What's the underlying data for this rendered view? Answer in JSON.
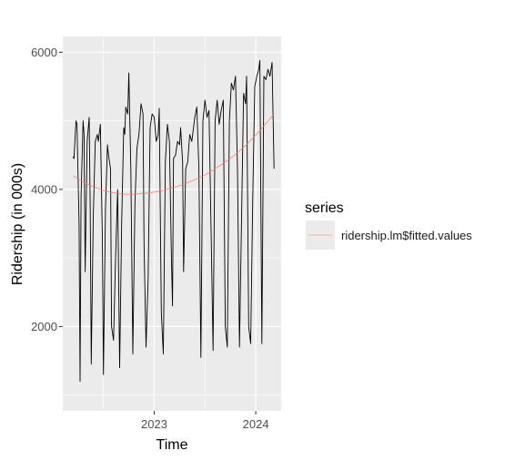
{
  "chart_data": {
    "type": "line",
    "xlabel": "Time",
    "ylabel": "Ridership (in 000s)",
    "xlim": [
      2022.1,
      2024.25
    ],
    "ylim": [
      770,
      6230
    ],
    "x_ticks": [
      {
        "value": 2023,
        "label": "2023"
      },
      {
        "value": 2024,
        "label": "2024"
      }
    ],
    "y_ticks": [
      {
        "value": 2000,
        "label": "2000"
      },
      {
        "value": 4000,
        "label": "4000"
      },
      {
        "value": 6000,
        "label": "6000"
      }
    ],
    "grid": true,
    "legend": {
      "title": "series",
      "position": "right"
    },
    "series": [
      {
        "color": "#000000",
        "points": [
          [
            2022.2,
            4480
          ],
          [
            2022.21,
            4450
          ],
          [
            2022.23,
            5000
          ],
          [
            2022.24,
            4950
          ],
          [
            2022.26,
            3500
          ],
          [
            2022.27,
            1200
          ],
          [
            2022.28,
            3900
          ],
          [
            2022.3,
            5000
          ],
          [
            2022.31,
            4800
          ],
          [
            2022.32,
            2800
          ],
          [
            2022.34,
            4700
          ],
          [
            2022.36,
            5050
          ],
          [
            2022.37,
            3800
          ],
          [
            2022.38,
            1450
          ],
          [
            2022.4,
            3600
          ],
          [
            2022.42,
            4700
          ],
          [
            2022.44,
            4800
          ],
          [
            2022.45,
            4700
          ],
          [
            2022.47,
            4950
          ],
          [
            2022.49,
            3300
          ],
          [
            2022.5,
            1300
          ],
          [
            2022.52,
            3700
          ],
          [
            2022.54,
            4650
          ],
          [
            2022.55,
            4500
          ],
          [
            2022.57,
            4300
          ],
          [
            2022.58,
            2000
          ],
          [
            2022.6,
            1800
          ],
          [
            2022.62,
            3000
          ],
          [
            2022.64,
            4000
          ],
          [
            2022.66,
            1400
          ],
          [
            2022.68,
            3500
          ],
          [
            2022.7,
            4900
          ],
          [
            2022.71,
            4800
          ],
          [
            2022.72,
            5200
          ],
          [
            2022.74,
            5100
          ],
          [
            2022.75,
            5700
          ],
          [
            2022.77,
            4300
          ],
          [
            2022.79,
            1600
          ],
          [
            2022.81,
            3800
          ],
          [
            2022.83,
            4600
          ],
          [
            2022.85,
            4800
          ],
          [
            2022.87,
            5250
          ],
          [
            2022.89,
            5100
          ],
          [
            2022.9,
            3200
          ],
          [
            2022.92,
            1700
          ],
          [
            2022.94,
            2700
          ],
          [
            2022.96,
            4900
          ],
          [
            2022.98,
            5100
          ],
          [
            2023.0,
            5050
          ],
          [
            2023.02,
            4700
          ],
          [
            2023.04,
            4800
          ],
          [
            2023.05,
            5180
          ],
          [
            2023.07,
            2200
          ],
          [
            2023.09,
            1600
          ],
          [
            2023.11,
            4400
          ],
          [
            2023.13,
            4950
          ],
          [
            2023.15,
            4700
          ],
          [
            2023.17,
            3000
          ],
          [
            2023.18,
            2300
          ],
          [
            2023.19,
            4450
          ],
          [
            2023.21,
            4500
          ],
          [
            2023.23,
            4700
          ],
          [
            2023.25,
            4650
          ],
          [
            2023.26,
            4900
          ],
          [
            2023.28,
            4400
          ],
          [
            2023.29,
            2800
          ],
          [
            2023.31,
            4300
          ],
          [
            2023.33,
            4400
          ],
          [
            2023.35,
            4800
          ],
          [
            2023.37,
            4700
          ],
          [
            2023.4,
            5050
          ],
          [
            2023.42,
            5200
          ],
          [
            2023.44,
            4300
          ],
          [
            2023.46,
            1550
          ],
          [
            2023.48,
            5000
          ],
          [
            2023.5,
            5300
          ],
          [
            2023.52,
            5050
          ],
          [
            2023.54,
            5150
          ],
          [
            2023.56,
            3400
          ],
          [
            2023.58,
            1650
          ],
          [
            2023.6,
            5000
          ],
          [
            2023.62,
            5300
          ],
          [
            2023.64,
            4950
          ],
          [
            2023.66,
            5150
          ],
          [
            2023.68,
            5300
          ],
          [
            2023.7,
            2000
          ],
          [
            2023.72,
            1700
          ],
          [
            2023.74,
            5000
          ],
          [
            2023.76,
            5550
          ],
          [
            2023.78,
            5450
          ],
          [
            2023.8,
            5650
          ],
          [
            2023.82,
            4300
          ],
          [
            2023.84,
            1700
          ],
          [
            2023.86,
            3600
          ],
          [
            2023.88,
            5400
          ],
          [
            2023.9,
            5250
          ],
          [
            2023.91,
            5650
          ],
          [
            2023.93,
            2000
          ],
          [
            2023.95,
            1750
          ],
          [
            2023.97,
            3800
          ],
          [
            2023.99,
            5500
          ],
          [
            2024.01,
            5650
          ],
          [
            2024.03,
            5750
          ],
          [
            2024.04,
            5880
          ],
          [
            2024.06,
            1750
          ],
          [
            2024.08,
            5650
          ],
          [
            2024.1,
            5600
          ],
          [
            2024.12,
            5750
          ],
          [
            2024.14,
            5650
          ],
          [
            2024.16,
            5850
          ],
          [
            2024.18,
            4300
          ]
        ]
      },
      {
        "name": "ridership.lm$fitted.values",
        "color": "#f8766d",
        "points": [
          [
            2022.2,
            4200
          ],
          [
            2022.3,
            4110
          ],
          [
            2022.4,
            4040
          ],
          [
            2022.5,
            3985
          ],
          [
            2022.6,
            3950
          ],
          [
            2022.7,
            3930
          ],
          [
            2022.8,
            3930
          ],
          [
            2022.9,
            3940
          ],
          [
            2023.0,
            3960
          ],
          [
            2023.1,
            3990
          ],
          [
            2023.2,
            4030
          ],
          [
            2023.3,
            4080
          ],
          [
            2023.4,
            4140
          ],
          [
            2023.5,
            4210
          ],
          [
            2023.6,
            4300
          ],
          [
            2023.7,
            4400
          ],
          [
            2023.8,
            4510
          ],
          [
            2023.9,
            4640
          ],
          [
            2024.0,
            4790
          ],
          [
            2024.1,
            4960
          ],
          [
            2024.18,
            5100
          ]
        ]
      }
    ]
  }
}
